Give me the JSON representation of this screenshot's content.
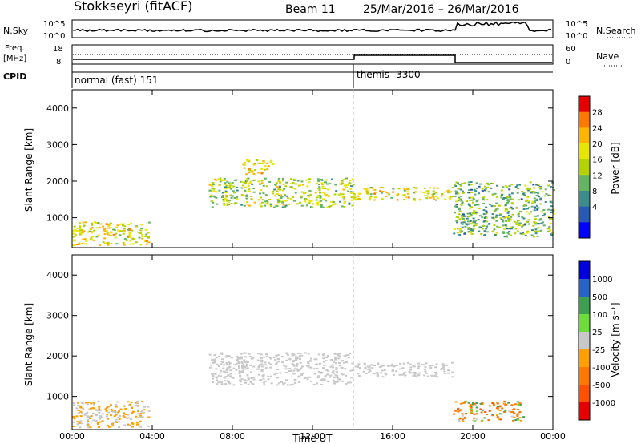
{
  "header": {
    "station": "Stokkseyri (fitACF)",
    "beam": "Beam 11",
    "dates": "25/Mar/2016 – 26/Mar/2016"
  },
  "panels": {
    "nsky_label": "N.Sky",
    "nsearch_label": "N.Search",
    "freq_label_1": "Freq.",
    "freq_label_2": "[MHz]",
    "nave_label": "Nave",
    "cpid_label": "CPID",
    "cpid_modes": [
      "normal (fast) 151",
      "themis -3300"
    ],
    "sky_ticks": [
      "10^5",
      "10^0"
    ],
    "search_ticks": [
      "10^5",
      "10^0"
    ],
    "freq_ticks": [
      "18",
      "8"
    ],
    "nave_ticks": [
      "60",
      "0"
    ]
  },
  "chart_data": [
    {
      "type": "heatmap",
      "title": "",
      "xlabel": "Time UT",
      "ylabel": "Slant Range [km]",
      "xticks": [
        "00:00",
        "04:00",
        "08:00",
        "12:00",
        "16:00",
        "20:00",
        "00:00"
      ],
      "xlim_hours": [
        0,
        24
      ],
      "ylim_km": [
        180,
        4500
      ],
      "yticks": [
        1000,
        2000,
        3000,
        4000
      ],
      "colorbar_label": "Power [dB]",
      "colorbar_ticks": [
        "28",
        "24",
        "20",
        "16",
        "12",
        "8",
        "4"
      ],
      "colorbar_colors": [
        "#e60000",
        "#ff7800",
        "#ffb400",
        "#e6e600",
        "#b4d200",
        "#64b464",
        "#3c8c8c",
        "#285ab4",
        "#0000ff"
      ],
      "echo_bands": [
        {
          "start_h": 0.0,
          "end_h": 3.8,
          "range_km": [
            250,
            900
          ],
          "power_db": 20
        },
        {
          "start_h": 6.8,
          "end_h": 14.0,
          "range_km": [
            1300,
            2100
          ],
          "power_db": 16
        },
        {
          "start_h": 8.5,
          "end_h": 10.0,
          "range_km": [
            2200,
            2600
          ],
          "power_db": 20
        },
        {
          "start_h": 14.0,
          "end_h": 19.0,
          "range_km": [
            1500,
            1850
          ],
          "power_db": 20
        },
        {
          "start_h": 19.0,
          "end_h": 24.0,
          "range_km": [
            500,
            2000
          ],
          "power_db": 12
        }
      ]
    },
    {
      "type": "heatmap",
      "title": "",
      "xlabel": "Time UT",
      "ylabel": "Slant Range [km]",
      "xticks": [
        "00:00",
        "04:00",
        "08:00",
        "12:00",
        "16:00",
        "20:00",
        "00:00"
      ],
      "xlim_hours": [
        0,
        24
      ],
      "ylim_km": [
        180,
        4500
      ],
      "yticks": [
        1000,
        2000,
        3000,
        4000
      ],
      "colorbar_label": "Velocity [m s⁻¹]",
      "colorbar_ticks": [
        "1000",
        "500",
        "100",
        "25",
        "-25",
        "-100",
        "-500",
        "-1000"
      ],
      "colorbar_colors": [
        "#0000dc",
        "#2864c8",
        "#3ca050",
        "#6edc3c",
        "#c8c8c8",
        "#ffa000",
        "#ff7800",
        "#ff5000",
        "#e60000"
      ],
      "echo_bands": [
        {
          "start_h": 0.0,
          "end_h": 3.8,
          "range_km": [
            250,
            900
          ],
          "velocity": -25
        },
        {
          "start_h": 6.8,
          "end_h": 14.0,
          "range_km": [
            1300,
            2100
          ],
          "velocity": 0
        },
        {
          "start_h": 14.0,
          "end_h": 19.0,
          "range_km": [
            1500,
            1850
          ],
          "velocity": 0
        },
        {
          "start_h": 19.0,
          "end_h": 22.5,
          "range_km": [
            400,
            900
          ],
          "velocity": -100
        }
      ]
    }
  ]
}
